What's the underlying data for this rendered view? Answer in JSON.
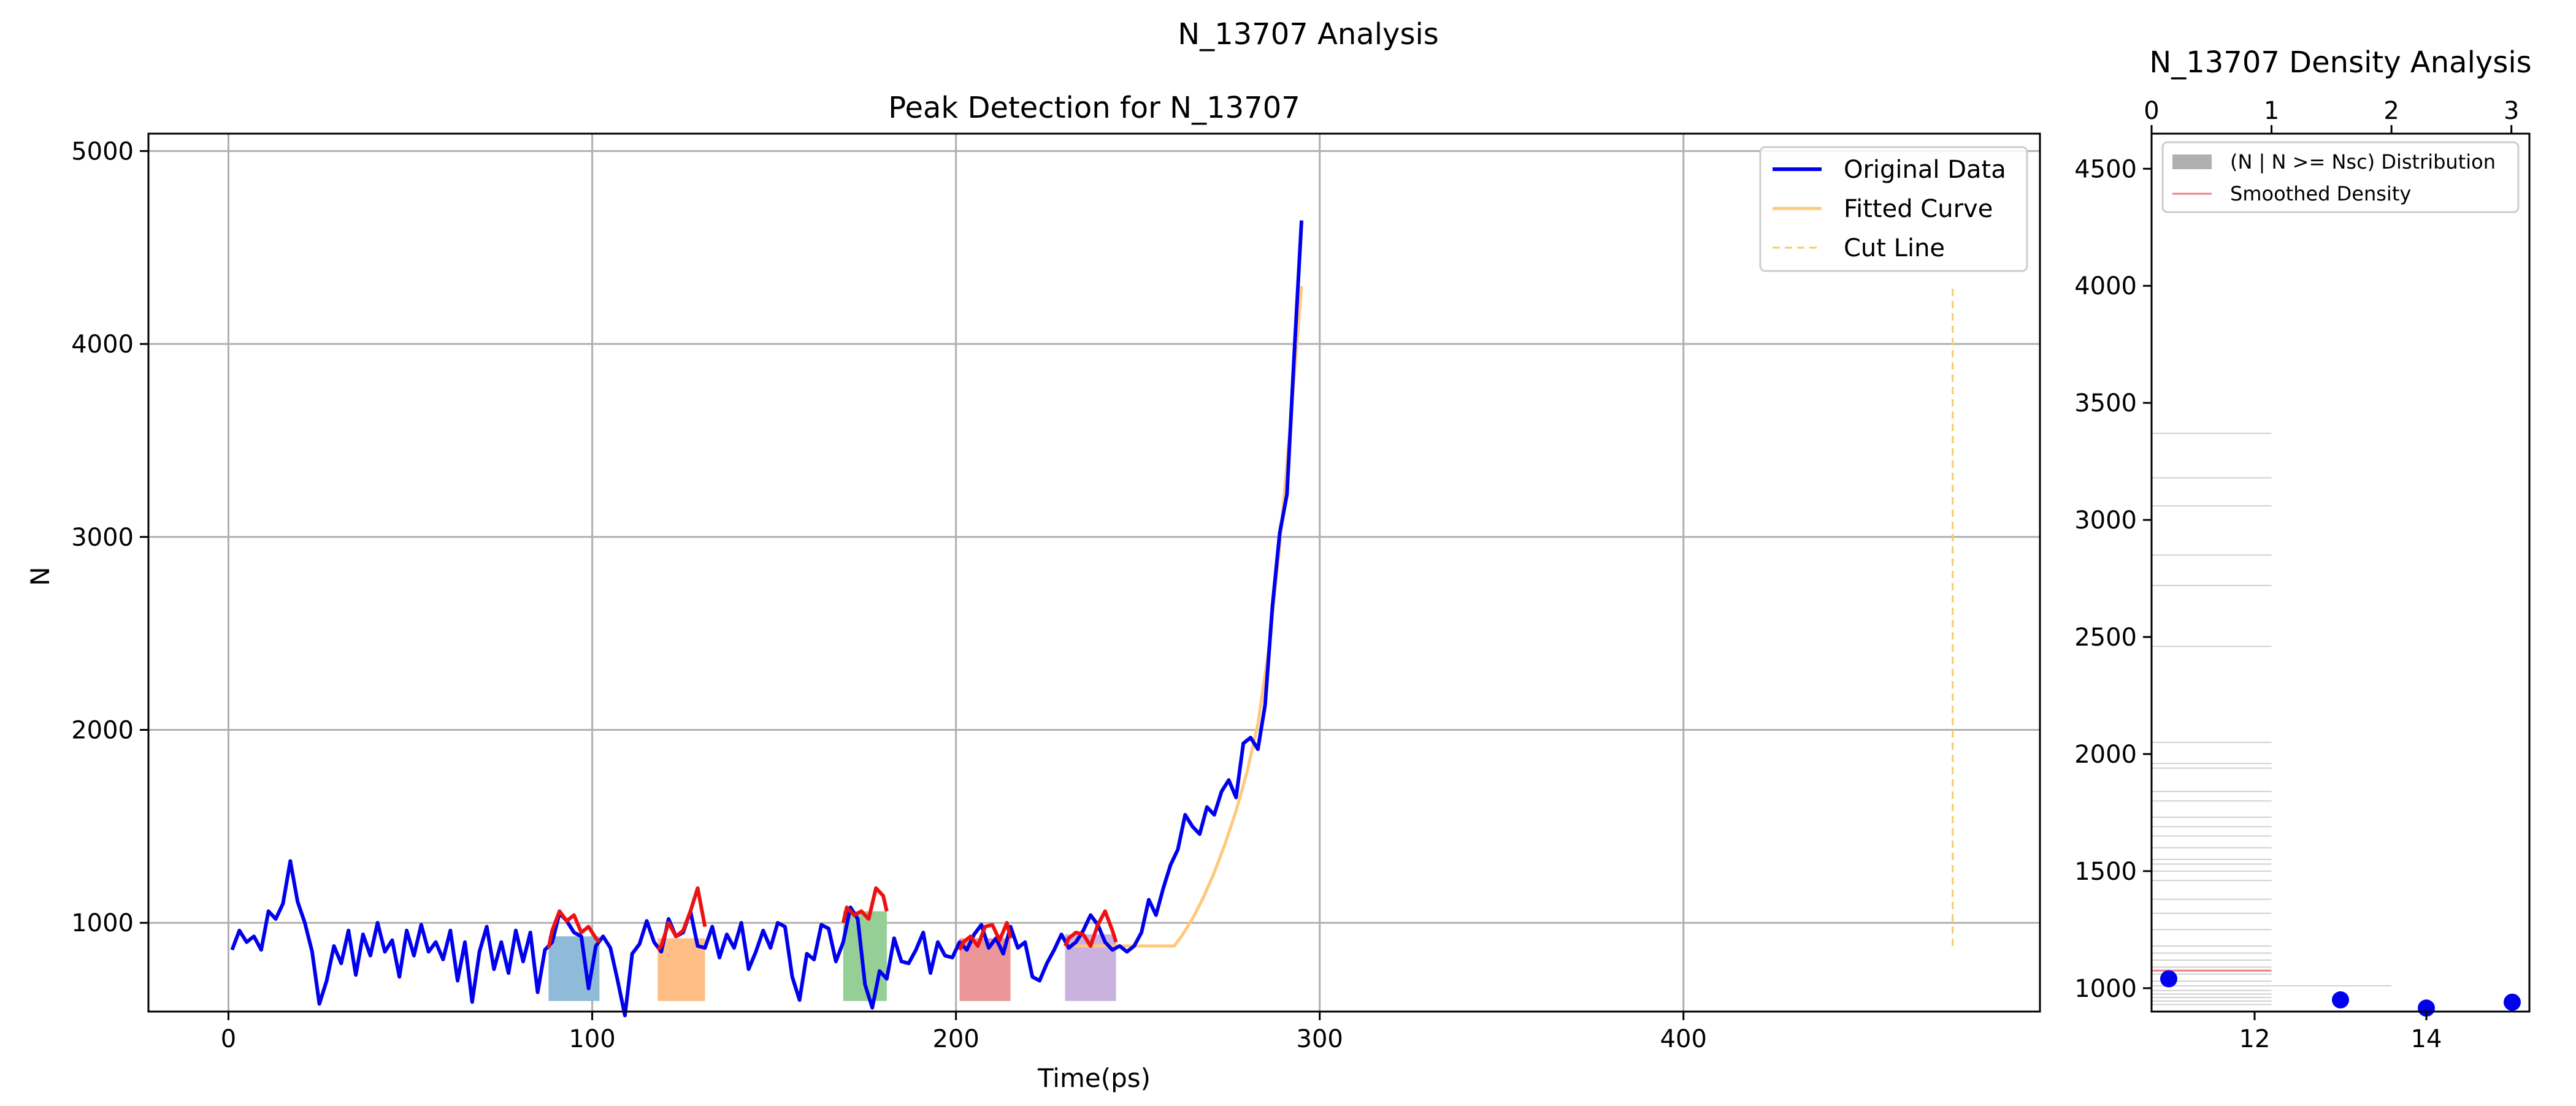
{
  "figure": {
    "suptitle": "N_13707 Analysis"
  },
  "chart_data": [
    {
      "type": "line",
      "title": "Peak Detection for N_13707",
      "xlabel": "Time(ps)",
      "ylabel": "N",
      "xlim": [
        -22,
        498
      ],
      "ylim": [
        540,
        5090
      ],
      "xticks": [
        0,
        100,
        200,
        300,
        400
      ],
      "yticks": [
        1000,
        2000,
        3000,
        4000,
        5000
      ],
      "grid": true,
      "legend_position": "top-right",
      "legend": [
        "Original Data",
        "Fitted Curve",
        "Cut Line"
      ],
      "colors": {
        "original": "#0000ee",
        "fitted": "#ffc87a",
        "cut": "#f5cc6e",
        "peaks": "#ee1111",
        "regions": [
          "#8fbbd9",
          "#ffbe86",
          "#95cf95",
          "#eb9698",
          "#c9b3de"
        ]
      },
      "series": [
        {
          "name": "Original Data",
          "x": [
            1,
            3,
            5,
            7,
            9,
            11,
            13,
            15,
            17,
            19,
            21,
            23,
            25,
            27,
            29,
            31,
            33,
            35,
            37,
            39,
            41,
            43,
            45,
            47,
            49,
            51,
            53,
            55,
            57,
            59,
            61,
            63,
            65,
            67,
            69,
            71,
            73,
            75,
            77,
            79,
            81,
            83,
            85,
            87,
            89,
            91,
            93,
            95,
            97,
            99,
            101,
            103,
            105,
            107,
            109,
            111,
            113,
            115,
            117,
            119,
            121,
            123,
            125,
            127,
            129,
            131,
            133,
            135,
            137,
            139,
            141,
            143,
            145,
            147,
            149,
            151,
            153,
            155,
            157,
            159,
            161,
            163,
            165,
            167,
            169,
            171,
            173,
            175,
            177,
            179,
            181,
            183,
            185,
            187,
            189,
            191,
            193,
            195,
            197,
            199,
            201,
            203,
            205,
            207,
            209,
            211,
            213,
            215,
            217,
            219,
            221,
            223,
            225,
            227,
            229,
            231,
            233,
            235,
            237,
            239,
            241,
            243,
            245,
            247,
            249,
            251,
            253,
            255,
            257,
            259,
            261,
            263,
            265,
            267,
            269,
            271,
            273,
            275,
            277,
            279,
            281,
            283,
            285,
            287,
            289,
            291,
            293,
            295
          ],
          "y": [
            860,
            960,
            900,
            930,
            860,
            1060,
            1020,
            1100,
            1320,
            1110,
            1000,
            850,
            580,
            700,
            880,
            790,
            960,
            730,
            940,
            830,
            1000,
            850,
            910,
            720,
            960,
            830,
            990,
            850,
            900,
            810,
            960,
            700,
            900,
            590,
            850,
            980,
            760,
            900,
            740,
            960,
            800,
            950,
            640,
            860,
            900,
            1050,
            1010,
            950,
            930,
            660,
            880,
            930,
            870,
            700,
            520,
            840,
            890,
            1010,
            900,
            850,
            1020,
            930,
            950,
            1060,
            880,
            870,
            980,
            820,
            940,
            870,
            1000,
            760,
            850,
            960,
            870,
            1000,
            980,
            720,
            600,
            840,
            810,
            990,
            970,
            800,
            900,
            1080,
            1020,
            680,
            560,
            750,
            710,
            920,
            800,
            790,
            860,
            950,
            740,
            900,
            830,
            820,
            900,
            860,
            940,
            990,
            870,
            920,
            840,
            980,
            870,
            900,
            720,
            700,
            790,
            860,
            940,
            870,
            900,
            960,
            1040,
            990,
            900,
            860,
            880,
            850,
            880,
            950,
            1120,
            1040,
            1180,
            1300,
            1380,
            1560,
            1500,
            1460,
            1600,
            1560,
            1680,
            1740,
            1650,
            1930,
            1960,
            1900,
            2130,
            2640,
            3020,
            3220,
            3950,
            4640
          ]
        },
        {
          "name": "Fitted Curve",
          "x": [
            230,
            260,
            262,
            265,
            268,
            271,
            274,
            277,
            280,
            283,
            286,
            289,
            292,
            295
          ],
          "y": [
            880,
            880,
            930,
            1020,
            1130,
            1260,
            1410,
            1580,
            1780,
            2030,
            2420,
            2950,
            3600,
            4300
          ]
        },
        {
          "name": "Cut Line",
          "x": [
            474,
            474
          ],
          "y": [
            880,
            4300
          ]
        }
      ],
      "peak_regions": [
        {
          "x": [
            88,
            89,
            91,
            93,
            95,
            97,
            99,
            101,
            102
          ],
          "y": [
            870,
            960,
            1060,
            1010,
            1040,
            950,
            980,
            920,
            900
          ]
        },
        {
          "x": [
            118,
            119,
            121,
            123,
            125,
            127,
            129,
            131
          ],
          "y": [
            860,
            880,
            1000,
            930,
            960,
            1060,
            1180,
            980
          ]
        },
        {
          "x": [
            169,
            170,
            172,
            174,
            176,
            178,
            180,
            181
          ],
          "y": [
            1000,
            1080,
            1040,
            1060,
            1020,
            1180,
            1140,
            1060
          ]
        },
        {
          "x": [
            201,
            202,
            204,
            206,
            208,
            210,
            212,
            214,
            215
          ],
          "y": [
            860,
            900,
            930,
            880,
            980,
            990,
            910,
            1000,
            920
          ]
        },
        {
          "x": [
            230,
            231,
            233,
            235,
            237,
            239,
            241,
            243,
            244
          ],
          "y": [
            880,
            920,
            950,
            940,
            880,
            990,
            1060,
            960,
            900
          ]
        }
      ]
    },
    {
      "type": "bar",
      "title": "N_13707 Density Analysis",
      "orientation": "horizontal",
      "xlim_top": [
        0,
        3.15
      ],
      "xticks_top": [
        0,
        1,
        2,
        3
      ],
      "xlim_bottom": [
        10.8,
        15.2
      ],
      "xticks_bottom": [
        12,
        14
      ],
      "ylim": [
        900,
        4650
      ],
      "yticks": [
        1000,
        1500,
        2000,
        2500,
        3000,
        3500,
        4000,
        4500
      ],
      "legend_position": "top-left",
      "legend": [
        "(N | N >= Nsc) Distribution",
        "Smoothed Density"
      ],
      "colors": {
        "hist": "#b0b0b0",
        "density": "#f07f7f",
        "points": "#0000ee"
      },
      "hist_lines": {
        "y": [
          3370,
          3180,
          3060,
          2850,
          2720,
          2460,
          2050,
          1960,
          1940,
          1840,
          1800,
          1730,
          1690,
          1650,
          1600,
          1550,
          1530,
          1500,
          1460,
          1380,
          1320,
          1250,
          1180,
          1150,
          1120,
          1090,
          1060,
          1030,
          1010,
          990,
          975,
          960,
          945,
          930
        ],
        "width": [
          1.0,
          1.0,
          1.0,
          1.0,
          1.0,
          1.0,
          1.0,
          1.0,
          1.0,
          1.0,
          1.0,
          1.0,
          1.0,
          1.0,
          1.0,
          1.0,
          1.0,
          1.0,
          1.0,
          1.0,
          1.0,
          1.0,
          1.0,
          1.0,
          1.0,
          1.0,
          1.0,
          1.0,
          2.0,
          1.0,
          1.0,
          1.0,
          1.0,
          1.0
        ]
      },
      "density_line": {
        "y": 1075,
        "x_end": 1.0
      },
      "points": [
        {
          "x": 11.0,
          "y": 1040
        },
        {
          "x": 13.0,
          "y": 950
        },
        {
          "x": 14.0,
          "y": 915
        },
        {
          "x": 15.0,
          "y": 940
        }
      ]
    }
  ]
}
